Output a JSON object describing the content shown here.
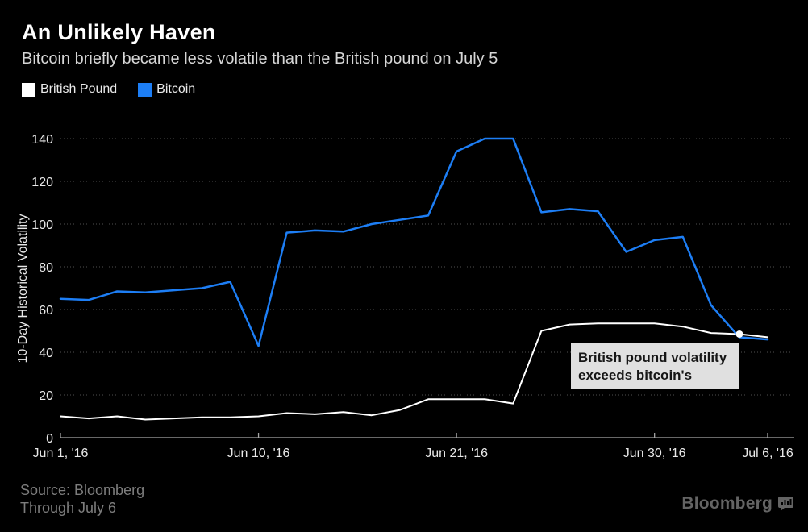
{
  "header": {
    "title": "An Unlikely Haven",
    "subtitle": "Bitcoin briefly became less volatile than the British pound on July 5"
  },
  "legend": [
    {
      "label": "British Pound",
      "color": "#ffffff"
    },
    {
      "label": "Bitcoin",
      "color": "#1d7ef5"
    }
  ],
  "chart_data": {
    "type": "line",
    "title": "An Unlikely Haven",
    "xlabel": "",
    "ylabel": "10-Day Historical Volatility",
    "ylim": [
      0,
      140
    ],
    "ytick_step": 20,
    "grid": "horizontal-dotted",
    "legend_position": "top-left",
    "x": [
      "Jun 1",
      "Jun 2",
      "Jun 3",
      "Jun 6",
      "Jun 7",
      "Jun 8",
      "Jun 9",
      "Jun 10",
      "Jun 13",
      "Jun 14",
      "Jun 15",
      "Jun 16",
      "Jun 17",
      "Jun 20",
      "Jun 21",
      "Jun 22",
      "Jun 23",
      "Jun 24",
      "Jun 27",
      "Jun 28",
      "Jun 29",
      "Jun 30",
      "Jul 1",
      "Jul 4",
      "Jul 5",
      "Jul 6"
    ],
    "xticks": [
      {
        "index": 0,
        "label": "Jun 1, '16"
      },
      {
        "index": 7,
        "label": "Jun 10, '16"
      },
      {
        "index": 14,
        "label": "Jun 21, '16"
      },
      {
        "index": 21,
        "label": "Jun 30, '16"
      },
      {
        "index": 25,
        "label": "Jul 6, '16"
      }
    ],
    "series": [
      {
        "name": "British Pound",
        "color": "#ffffff",
        "width": 2,
        "values": [
          10,
          9,
          10,
          8.5,
          9,
          9.5,
          9.5,
          10,
          11.5,
          11,
          12,
          10.5,
          13,
          18,
          18,
          18,
          16,
          50,
          53,
          53.5,
          53.5,
          53.5,
          52,
          49,
          48.5,
          47
        ]
      },
      {
        "name": "Bitcoin",
        "color": "#1d7ef5",
        "width": 2.5,
        "values": [
          65,
          64.5,
          68.5,
          68,
          69,
          70,
          73,
          43,
          96,
          97,
          96.5,
          100,
          102,
          104,
          134,
          140,
          140,
          105.5,
          107,
          106,
          87,
          92.5,
          94,
          62,
          47,
          46
        ]
      }
    ],
    "marker": {
      "series": "British Pound",
      "x": "Jul 5",
      "index": 24,
      "value": 48.5,
      "color": "#ffffff"
    },
    "annotation": {
      "text_line1": "British pound volatility",
      "text_line2": "exceeds bitcoin's",
      "bg": "#e0e0e0",
      "color": "#161616"
    },
    "colors": {
      "background": "#000000",
      "gridline": "#4f4f4f",
      "axis_line": "#a6a6a6",
      "tick_label": "#e9e9e9"
    }
  },
  "footer": {
    "source_line1": "Source:  Bloomberg",
    "source_line2": "Through July 6",
    "brand": "Bloomberg"
  }
}
